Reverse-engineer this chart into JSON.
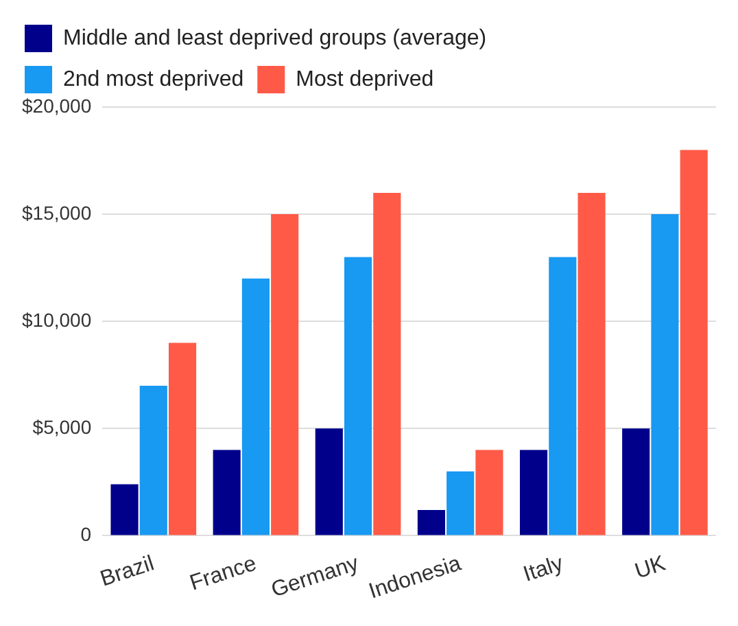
{
  "chart_data": {
    "type": "bar",
    "categories": [
      "Brazil",
      "France",
      "Germany",
      "Indonesia",
      "Italy",
      "UK"
    ],
    "series": [
      {
        "name": "Middle and least deprived groups (average)",
        "color": "#00008b",
        "values": [
          2400,
          4000,
          5000,
          1200,
          4000,
          5000
        ]
      },
      {
        "name": "2nd most deprived",
        "color": "#1899f2",
        "values": [
          7000,
          12000,
          13000,
          3000,
          13000,
          15000
        ]
      },
      {
        "name": "Most deprived",
        "color": "#ff5a47",
        "values": [
          9000,
          15000,
          16000,
          4000,
          16000,
          18000
        ]
      }
    ],
    "ylim": [
      0,
      20000
    ],
    "yticks": [
      {
        "value": 0,
        "label": "0"
      },
      {
        "value": 5000,
        "label": "$5,000"
      },
      {
        "value": 10000,
        "label": "$10,000"
      },
      {
        "value": 15000,
        "label": "$15,000"
      },
      {
        "value": 20000,
        "label": "$20,000"
      }
    ],
    "grid": "y",
    "legend": "top left"
  }
}
